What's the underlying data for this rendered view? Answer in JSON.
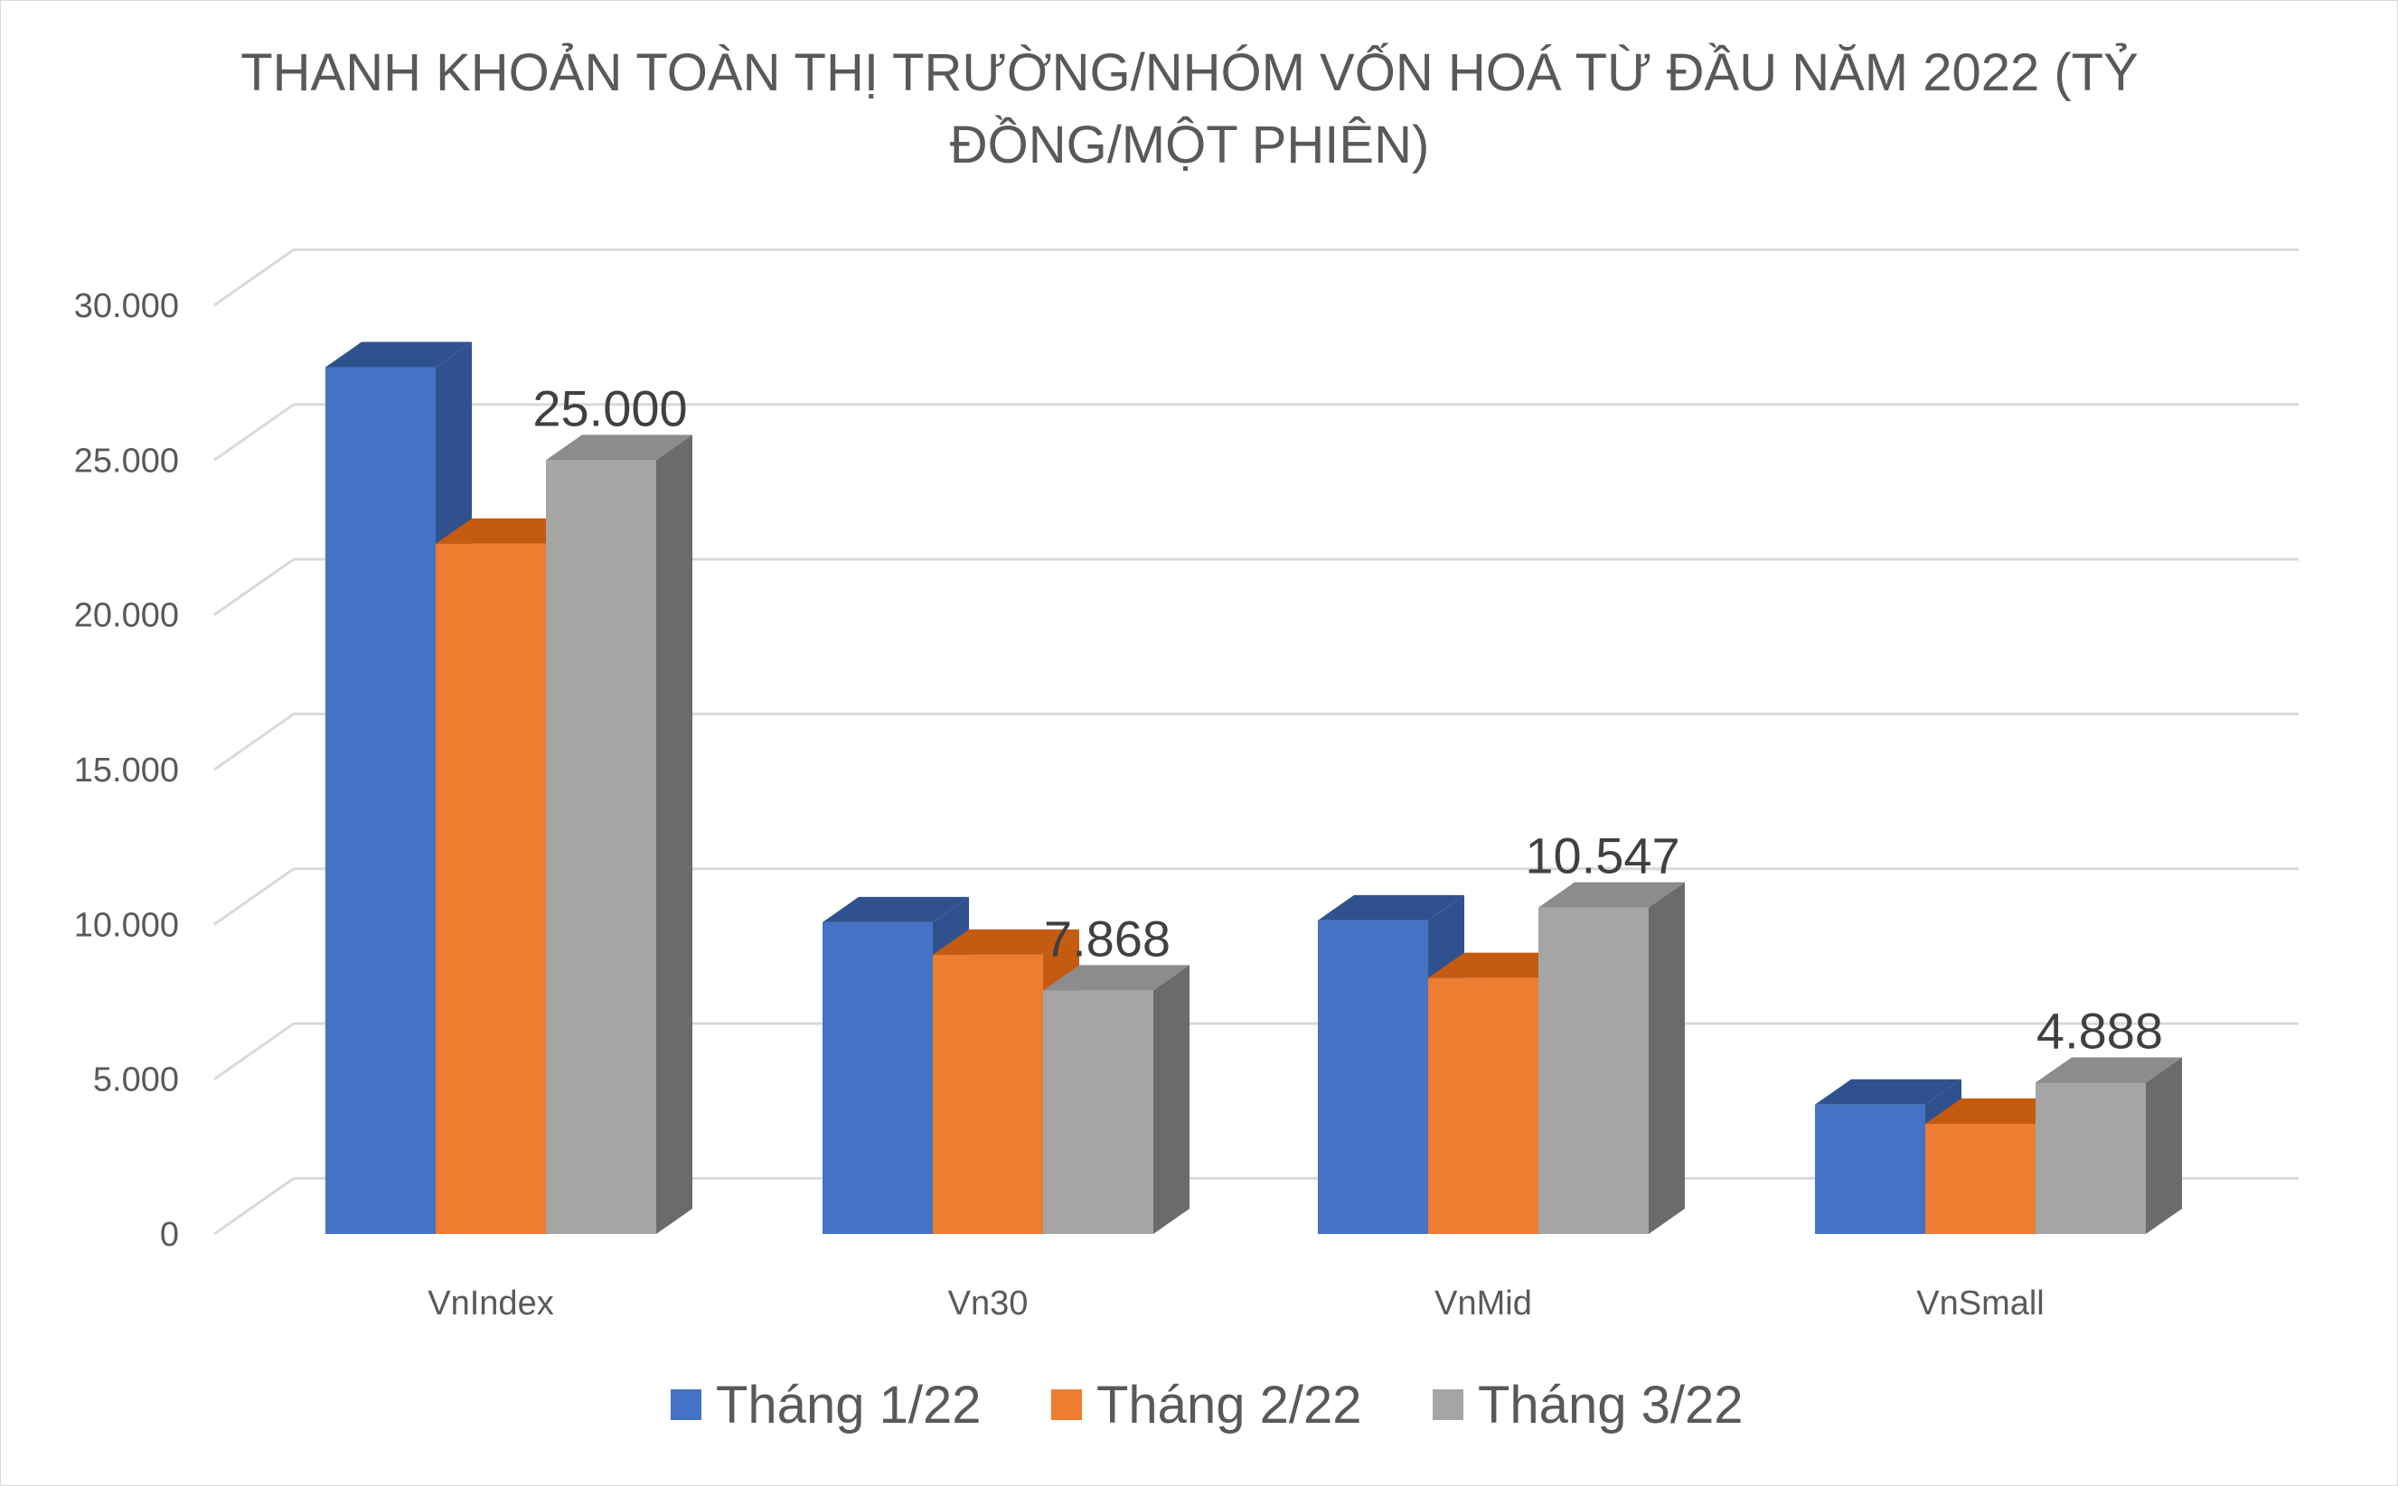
{
  "chart_data": {
    "type": "bar",
    "title_line1": "THANH KHOẢN TOÀN THỊ TRƯỜNG/NHÓM VỐN HOÁ TỪ ĐẦU NĂM 2022 (TỶ",
    "title_line2": "ĐỒNG/MỘT PHIÊN)",
    "categories": [
      "VnIndex",
      "Vn30",
      "VnMid",
      "VnSmall"
    ],
    "series": [
      {
        "name": "Tháng 1/22",
        "values": [
          28000,
          10070,
          10130,
          4180
        ],
        "color": "#4472C4",
        "top": "#2F528F",
        "side": "#2F528F"
      },
      {
        "name": "Tháng 2/22",
        "values": [
          22300,
          9020,
          8270,
          3560
        ],
        "color": "#ED7D31",
        "top": "#C55A11",
        "side": "#C55A11"
      },
      {
        "name": "Tháng 3/22",
        "values": [
          25000,
          7868,
          10547,
          4888
        ],
        "color": "#A5A5A5",
        "top": "#8C8C8C",
        "side": "#6B6B6B"
      }
    ],
    "data_labels": [
      "25.000",
      "7.868",
      "10.547",
      "4.888"
    ],
    "y_ticks": [
      "0",
      "5.000",
      "10.000",
      "15.000",
      "20.000",
      "25.000",
      "30.000"
    ],
    "ylim": [
      0,
      30000
    ],
    "grid": true,
    "legend_position": "bottom"
  }
}
